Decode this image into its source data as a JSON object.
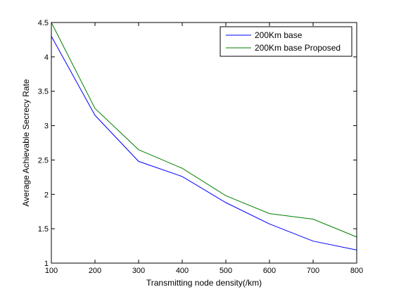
{
  "chart_data": {
    "type": "line",
    "title": "",
    "xlabel": "Transmitting node density(/km)",
    "ylabel": "Average Achievable Secrecy Rate",
    "xlim": [
      100,
      800
    ],
    "ylim": [
      1,
      4.5
    ],
    "x_ticks": [
      "100",
      "200",
      "300",
      "400",
      "500",
      "600",
      "700",
      "800"
    ],
    "y_ticks": [
      "1",
      "1.5",
      "2",
      "2.5",
      "3",
      "3.5",
      "4",
      "4.5"
    ],
    "grid": false,
    "legend_position": "top-right",
    "x": [
      100,
      200,
      300,
      400,
      500,
      600,
      700,
      800
    ],
    "series": [
      {
        "name": "200Km base",
        "color": "#0000ff",
        "values": [
          4.3,
          3.15,
          2.48,
          2.26,
          1.88,
          1.57,
          1.32,
          1.19
        ]
      },
      {
        "name": "200Km base Proposed",
        "color": "#008000",
        "values": [
          4.5,
          3.25,
          2.65,
          2.38,
          1.98,
          1.72,
          1.64,
          1.38
        ]
      }
    ]
  }
}
